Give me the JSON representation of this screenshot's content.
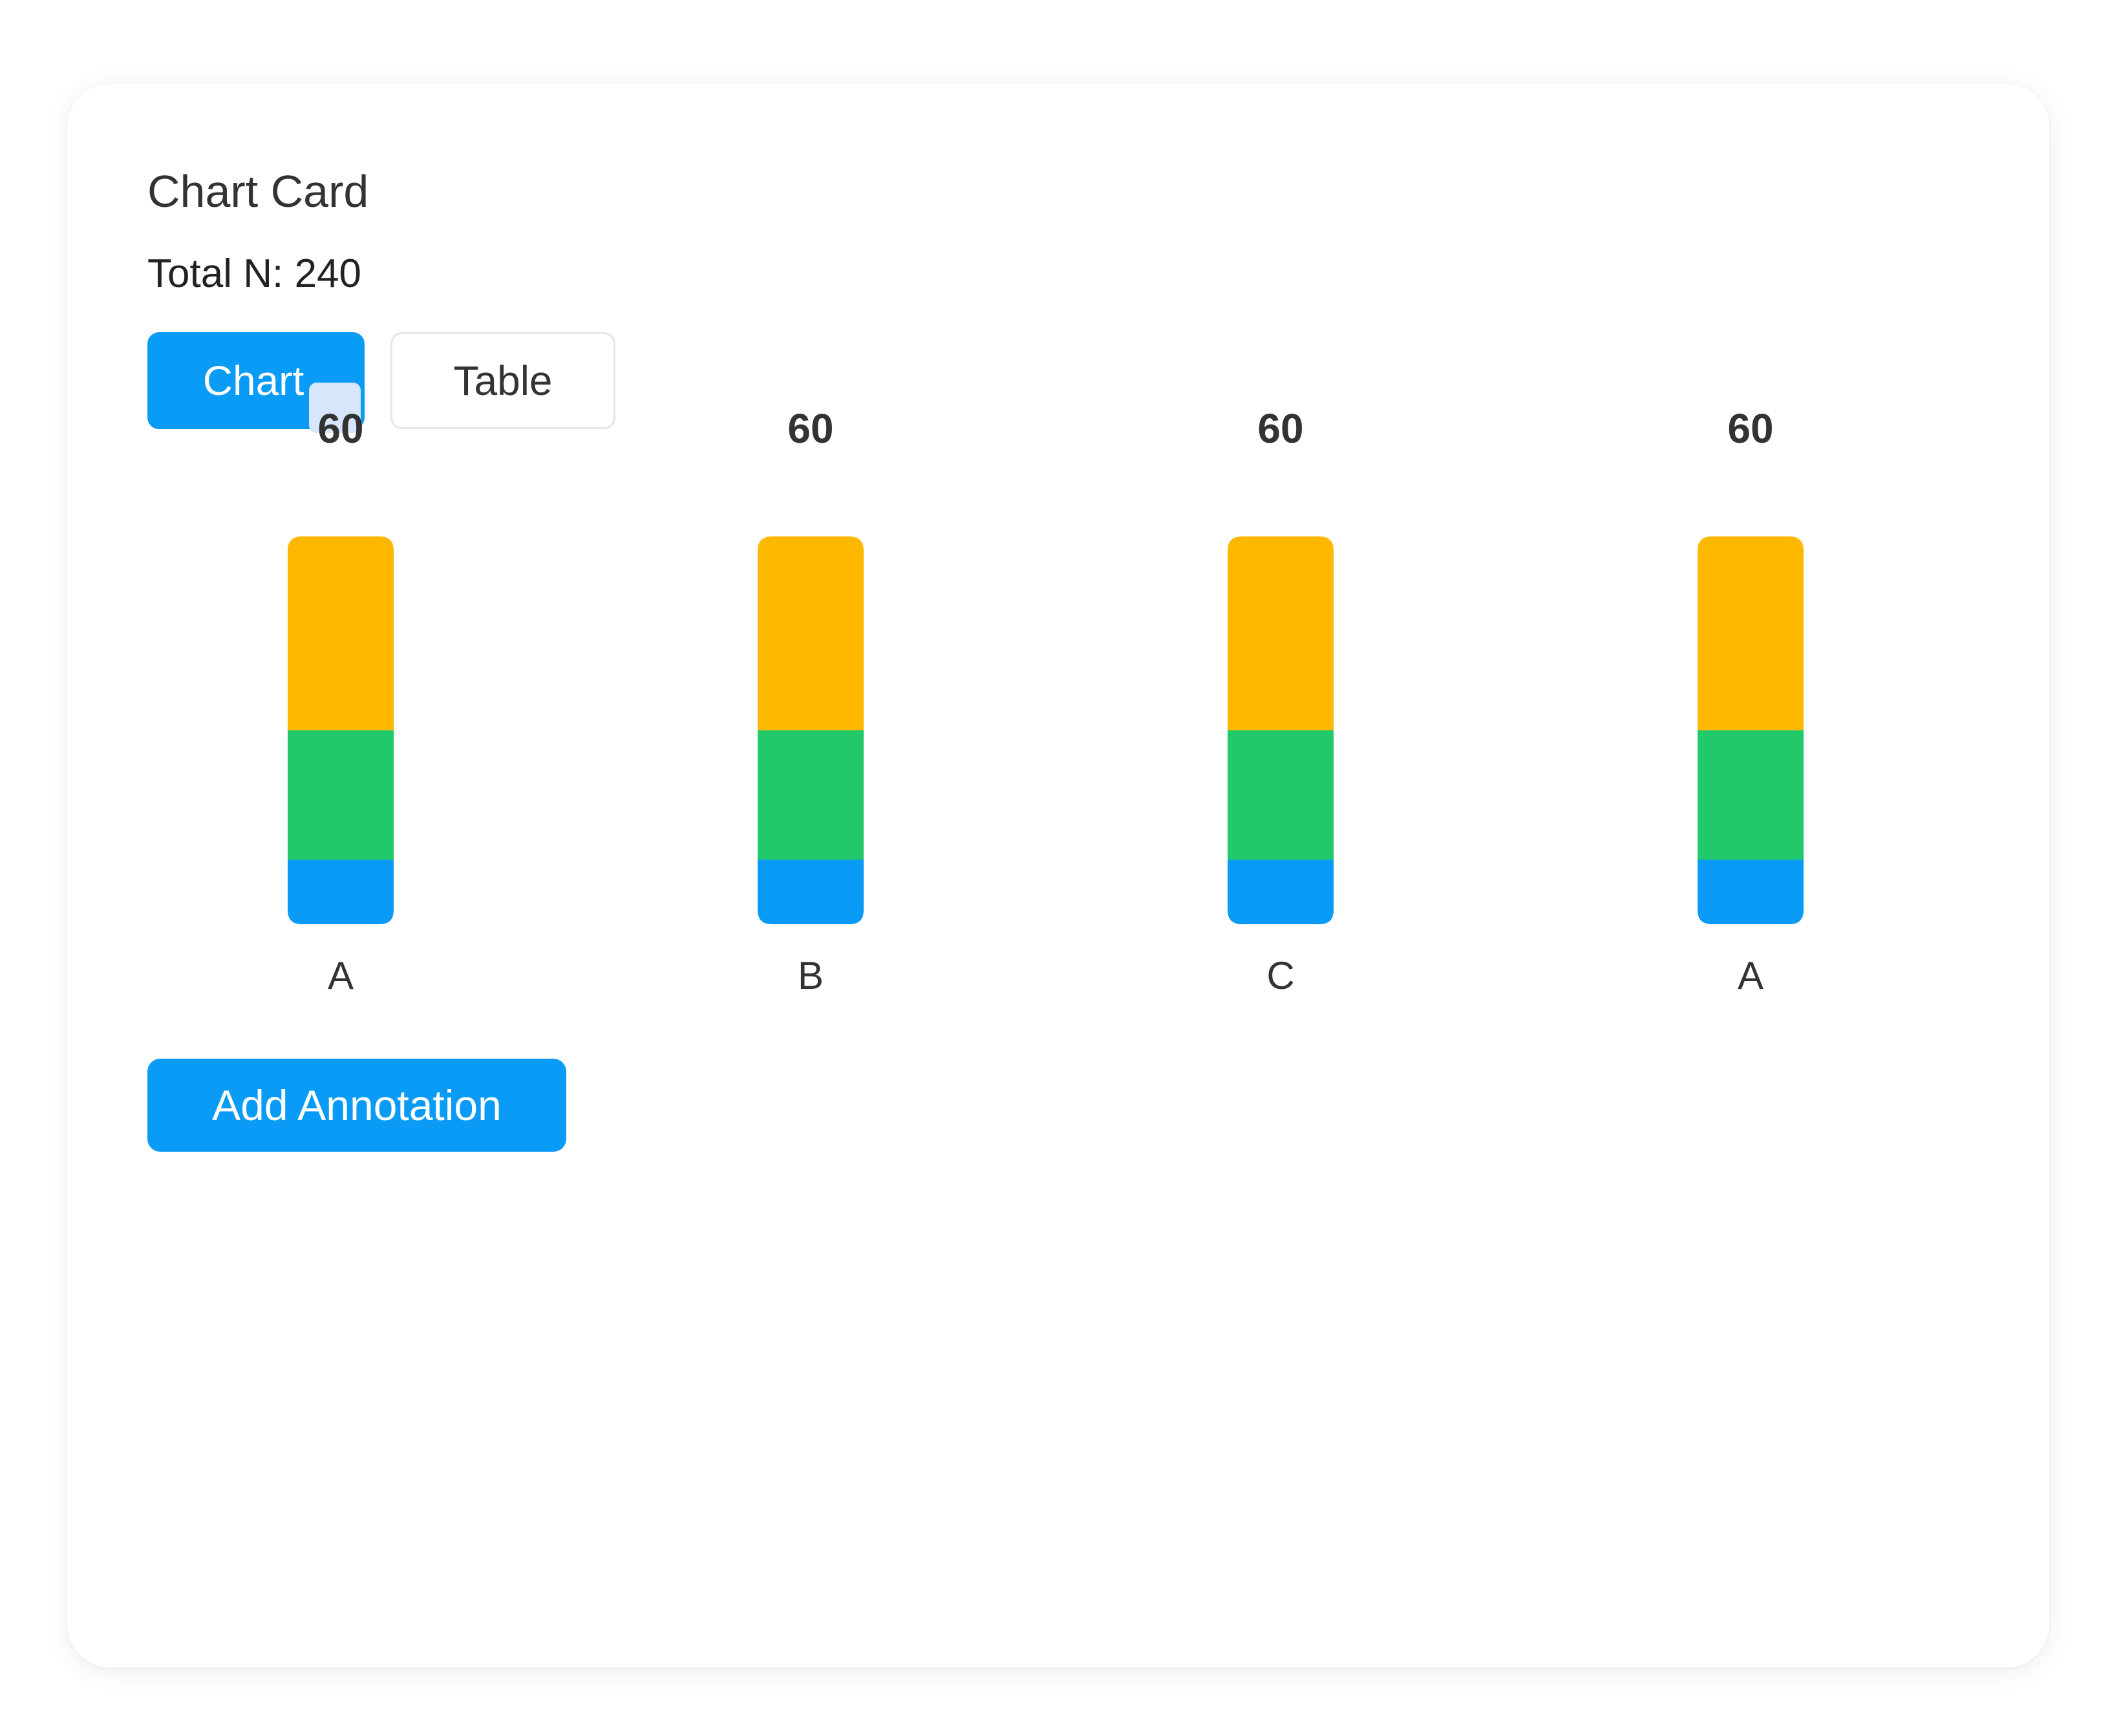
{
  "card": {
    "title": "Chart Card",
    "total_label": "Total N:",
    "total_value": "240"
  },
  "tabs": [
    {
      "label": "Chart",
      "active": true
    },
    {
      "label": "Table",
      "active": false
    }
  ],
  "actions": {
    "add_annotation_label": "Add Annotation"
  },
  "colors": {
    "accent": "#0a9bf6",
    "segment_bottom": "#0a9bf6",
    "segment_middle": "#22c96a",
    "segment_top": "#ffb800"
  },
  "chart_data": {
    "type": "bar",
    "stacked": true,
    "categories": [
      "A",
      "B",
      "C",
      "A"
    ],
    "totals": [
      60,
      60,
      60,
      60
    ],
    "series": [
      {
        "values": [
          10,
          10,
          10,
          10
        ],
        "color": "#0a9bf6"
      },
      {
        "values": [
          20,
          20,
          20,
          20
        ],
        "color": "#22c96a"
      },
      {
        "values": [
          30,
          30,
          30,
          30
        ],
        "color": "#ffb800"
      }
    ],
    "ylim": [
      0,
      60
    ],
    "grid": false,
    "legend": "none"
  }
}
